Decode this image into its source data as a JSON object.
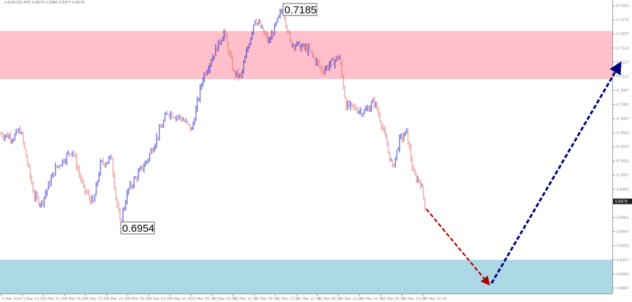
{
  "header": {
    "symbol": "AUDUSD,M30",
    "ohlc": "0.6979 0.6980 0.6977 0.6979"
  },
  "chart_data": {
    "type": "candlestick",
    "symbol": "AUDUSD",
    "timeframe": "M30",
    "ylim": [
      0.6882,
      0.7195
    ],
    "y_ticks": [
      "0.7187",
      "0.7172",
      "0.7157",
      "0.7142",
      "0.7127",
      "0.7112",
      "0.7097",
      "0.7082",
      "0.7067",
      "0.7052",
      "0.7037",
      "0.7022",
      "0.7007",
      "0.6992",
      "0.6962",
      "0.6947",
      "0.6932",
      "0.6917",
      "0.6902",
      "0.6887"
    ],
    "x_ticks": [
      "5 Mar 2026",
      "5 Mar 13:30",
      "5 Mar 21:30",
      "6 Mar 05:30",
      "6 Mar 13:30",
      "6 Mar 21:30",
      "9 Mar 05:30",
      "9 Mar 13:30",
      "9 Mar 21:30",
      "10 Mar 05:30",
      "10 Mar 13:30",
      "10 Mar 21:30",
      "11 Mar 05:30",
      "11 Mar 13:30",
      "11 Mar 21:30",
      "12 Mar 05:30",
      "12 Mar 13:30",
      "12 Mar 21:30",
      "13 Mar 05:30",
      "13 Mar 13:30",
      "13 Mar 21:30"
    ],
    "current_price": "0.6979",
    "price_path": [
      [
        0,
        0.7051
      ],
      [
        10,
        0.7047
      ],
      [
        15,
        0.7055
      ],
      [
        25,
        0.6984
      ],
      [
        30,
        0.6977
      ],
      [
        40,
        0.7014
      ],
      [
        52,
        0.7034
      ],
      [
        60,
        0.6992
      ],
      [
        67,
        0.6977
      ],
      [
        72,
        0.7018
      ],
      [
        80,
        0.7025
      ],
      [
        83,
        0.6984
      ],
      [
        86,
        0.6956
      ],
      [
        92,
        0.6992
      ],
      [
        105,
        0.7022
      ],
      [
        120,
        0.7074
      ],
      [
        130,
        0.7067
      ],
      [
        137,
        0.7055
      ],
      [
        145,
        0.7111
      ],
      [
        160,
        0.7159
      ],
      [
        167,
        0.7115
      ],
      [
        172,
        0.7111
      ],
      [
        182,
        0.7174
      ],
      [
        192,
        0.7148
      ],
      [
        202,
        0.7185
      ],
      [
        207,
        0.7148
      ],
      [
        220,
        0.714
      ],
      [
        230,
        0.7118
      ],
      [
        242,
        0.7133
      ],
      [
        247,
        0.7081
      ],
      [
        260,
        0.7074
      ],
      [
        267,
        0.7085
      ],
      [
        272,
        0.7063
      ],
      [
        280,
        0.7014
      ],
      [
        285,
        0.7044
      ],
      [
        290,
        0.7052
      ],
      [
        295,
        0.7007
      ],
      [
        300,
        0.6999
      ],
      [
        303,
        0.6976
      ]
    ],
    "annotations": [
      {
        "text": "0.7185",
        "type": "high"
      },
      {
        "text": "0.6954",
        "type": "low"
      }
    ],
    "zones": [
      {
        "name": "resistance",
        "from": 0.7109,
        "to": 0.716,
        "color": "#ffc0cb"
      },
      {
        "name": "support",
        "from": 0.6881,
        "to": 0.6917,
        "color": "#add8e6"
      }
    ],
    "forecast": [
      {
        "from": 0.6971,
        "to": 0.6892,
        "color": "#b00000"
      },
      {
        "from": 0.6892,
        "to": 0.7124,
        "color": "#000080"
      }
    ],
    "colors": {
      "bull": "#0000cc",
      "bear": "#e06060"
    }
  }
}
